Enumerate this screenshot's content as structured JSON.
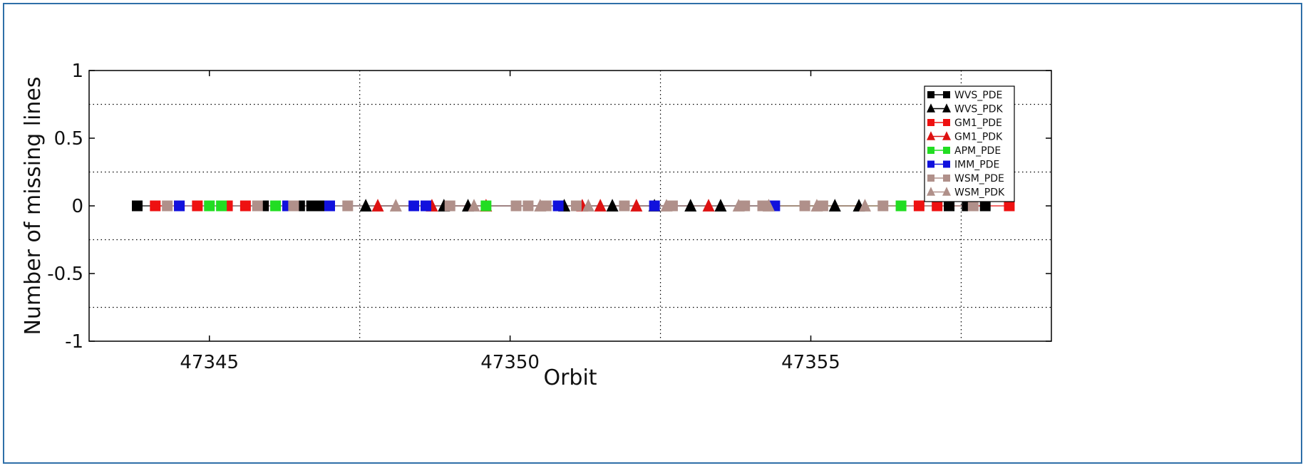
{
  "chart_data": {
    "type": "scatter",
    "title": "",
    "xlabel": "Orbit",
    "ylabel": "Number of missing lines",
    "xlim": [
      47343,
      47359
    ],
    "ylim": [
      -1,
      1
    ],
    "xticks": [
      47345,
      47350,
      47355
    ],
    "xtick_labels": [
      "47345",
      "47350",
      "47355"
    ],
    "yticks": [
      -1,
      -0.5,
      0,
      0.5,
      1
    ],
    "ytick_labels": [
      "-1",
      "-0.5",
      "0",
      "0.5",
      "1"
    ],
    "grid": "dotted",
    "legend_position": "top-right",
    "series": [
      {
        "name": "WVS_PDE",
        "marker": "square",
        "color": "#000000",
        "x": [
          47343.8,
          47345.9,
          47346.5,
          47346.7,
          47346.85,
          47357.3,
          47357.6,
          47357.9
        ],
        "y": [
          0,
          0,
          0,
          0,
          0,
          0,
          0,
          0
        ]
      },
      {
        "name": "WVS_PDK",
        "marker": "triangle",
        "color": "#000000",
        "x": [
          47347.6,
          47348.9,
          47349.3,
          47350.9,
          47351.7,
          47352.4,
          47353.0,
          47353.5,
          47355.4,
          47355.8
        ],
        "y": [
          0,
          0,
          0,
          0,
          0,
          0,
          0,
          0,
          0,
          0
        ]
      },
      {
        "name": "GM1_PDE",
        "marker": "square",
        "color": "#ee1111",
        "x": [
          47344.1,
          47344.5,
          47344.8,
          47345.3,
          47345.6,
          47356.8,
          47357.1,
          47358.3
        ],
        "y": [
          0,
          0,
          0,
          0,
          0,
          0,
          0,
          0
        ]
      },
      {
        "name": "GM1_PDK",
        "marker": "triangle",
        "color": "#dd1111",
        "x": [
          47347.8,
          47348.7,
          47349.6,
          47351.2,
          47351.5,
          47352.1,
          47353.3
        ],
        "y": [
          0,
          0,
          0,
          0,
          0,
          0,
          0
        ]
      },
      {
        "name": "APM_PDE",
        "marker": "square",
        "color": "#22dd22",
        "x": [
          47345.0,
          47345.2,
          47346.1,
          47349.6,
          47356.5
        ],
        "y": [
          0,
          0,
          0,
          0,
          0
        ]
      },
      {
        "name": "IMM_PDE",
        "marker": "square",
        "color": "#1111dd",
        "x": [
          47344.5,
          47346.3,
          47347.0,
          47348.4,
          47348.6,
          47350.8,
          47352.4,
          47354.4
        ],
        "y": [
          0,
          0,
          0,
          0,
          0,
          0,
          0,
          0
        ]
      },
      {
        "name": "WSM_PDE",
        "marker": "square",
        "color": "#b0908a",
        "x": [
          47344.3,
          47345.8,
          47346.4,
          47347.3,
          47349.0,
          47350.1,
          47350.3,
          47350.6,
          47351.1,
          47351.9,
          47352.7,
          47353.9,
          47354.2,
          47354.9,
          47355.2,
          47356.2,
          47357.7
        ],
        "y": [
          0,
          0,
          0,
          0,
          0,
          0,
          0,
          0,
          0,
          0,
          0,
          0,
          0,
          0,
          0,
          0,
          0
        ]
      },
      {
        "name": "WSM_PDK",
        "marker": "triangle",
        "color": "#b0908a",
        "x": [
          47348.1,
          47349.4,
          47350.5,
          47351.3,
          47352.6,
          47353.8,
          47354.3,
          47355.1,
          47355.9
        ],
        "y": [
          0,
          0,
          0,
          0,
          0,
          0,
          0,
          0,
          0
        ]
      }
    ]
  }
}
